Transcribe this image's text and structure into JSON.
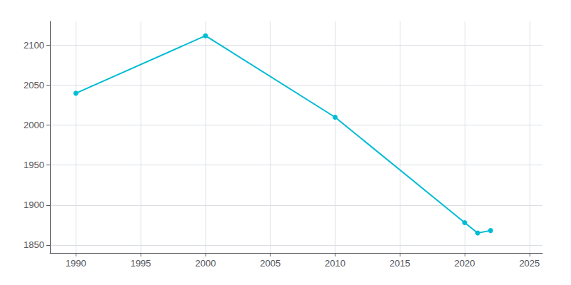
{
  "chart_data": {
    "type": "line",
    "x": [
      1990,
      2000,
      2010,
      2020,
      2021,
      2022
    ],
    "values": [
      2040,
      2112,
      2010,
      1878,
      1865,
      1868
    ],
    "color": "#00bcd4",
    "marker": "circle",
    "xlim": [
      1988,
      2026
    ],
    "xticks": [
      1990,
      1995,
      2000,
      2005,
      2010,
      2015,
      2020,
      2025
    ],
    "ylim": [
      1840,
      2130
    ],
    "yticks": [
      1850,
      1900,
      1950,
      2000,
      2050,
      2100
    ],
    "grid": true
  }
}
